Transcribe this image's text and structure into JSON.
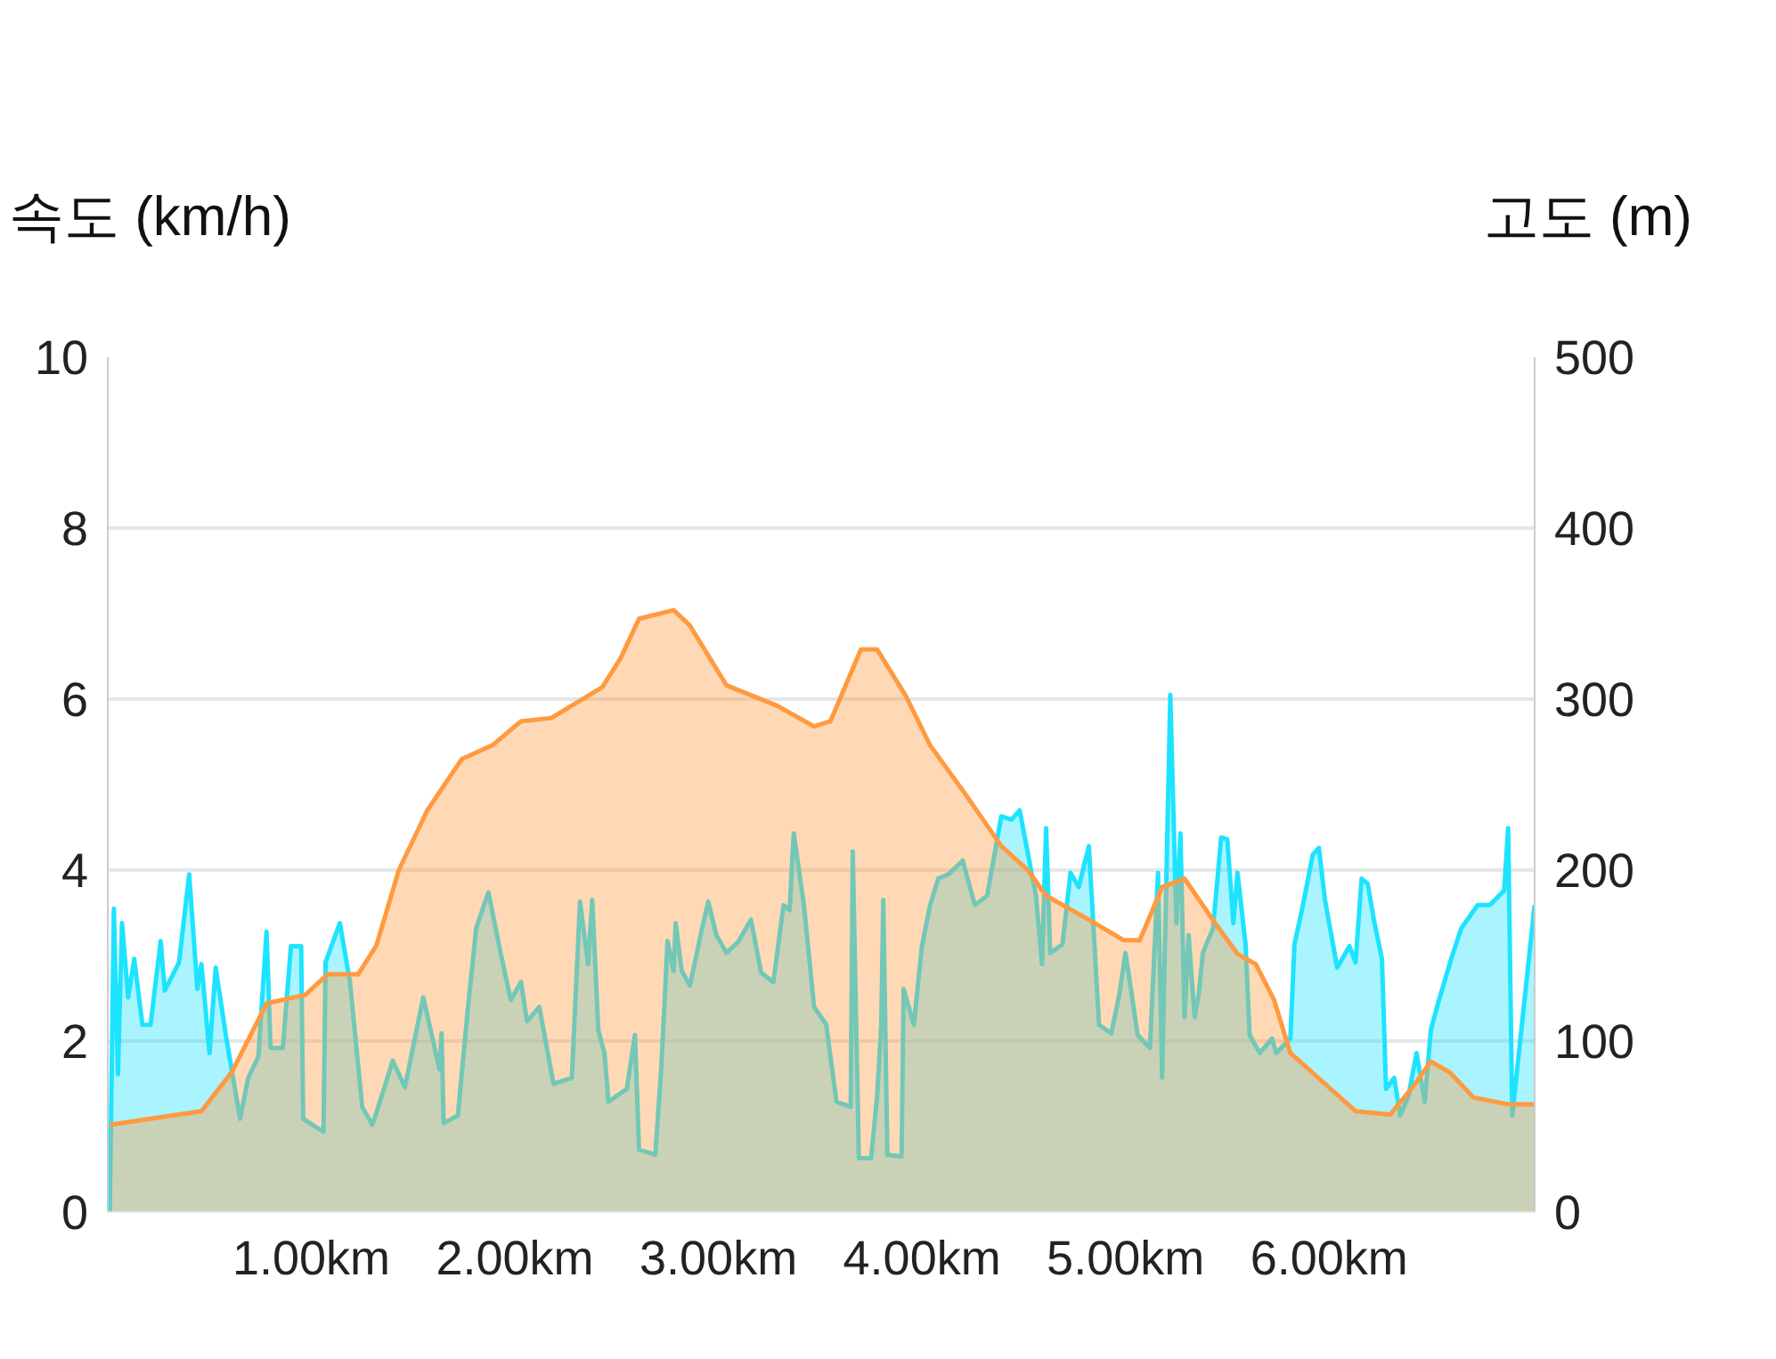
{
  "chart_data": {
    "type": "area",
    "ylabel": "속도 (km/h)",
    "y2label": "고도 (m)",
    "xlim": [
      0,
      7.01
    ],
    "xticks": [
      {
        "value": 1,
        "label": "1.00km"
      },
      {
        "value": 2,
        "label": "2.00km"
      },
      {
        "value": 3,
        "label": "3.00km"
      },
      {
        "value": 4,
        "label": "4.00km"
      },
      {
        "value": 5,
        "label": "5.00km"
      },
      {
        "value": 6,
        "label": "6.00km"
      }
    ],
    "ylim": [
      0,
      10
    ],
    "yticks": [
      0,
      2,
      4,
      6,
      8,
      10
    ],
    "y2lim": [
      0,
      500
    ],
    "y2ticks": [
      0,
      100,
      200,
      300,
      400,
      500
    ],
    "grid": "y",
    "series": [
      {
        "color": "#1ee3ff",
        "x": [
          0.01,
          0.03,
          0.05,
          0.07,
          0.1,
          0.13,
          0.17,
          0.21,
          0.26,
          0.28,
          0.35,
          0.4,
          0.44,
          0.46,
          0.5,
          0.53,
          0.58,
          0.65,
          0.69,
          0.74,
          0.78,
          0.8,
          0.86,
          0.9,
          0.95,
          0.96,
          1.06,
          1.07,
          1.14,
          1.19,
          1.25,
          1.3,
          1.36,
          1.4,
          1.46,
          1.55,
          1.63,
          1.64,
          1.65,
          1.72,
          1.77,
          1.81,
          1.87,
          1.93,
          1.98,
          2.03,
          2.06,
          2.12,
          2.19,
          2.28,
          2.32,
          2.36,
          2.38,
          2.41,
          2.44,
          2.46,
          2.55,
          2.59,
          2.61,
          2.69,
          2.72,
          2.75,
          2.78,
          2.79,
          2.82,
          2.86,
          2.92,
          2.95,
          2.99,
          3.04,
          3.1,
          3.16,
          3.21,
          3.27,
          3.32,
          3.35,
          3.37,
          3.42,
          3.47,
          3.53,
          3.58,
          3.65,
          3.66,
          3.69,
          3.75,
          3.78,
          3.8,
          3.81,
          3.83,
          3.9,
          3.91,
          3.96,
          4.0,
          4.04,
          4.08,
          4.13,
          4.2,
          4.26,
          4.32,
          4.39,
          4.44,
          4.48,
          4.56,
          4.59,
          4.61,
          4.63,
          4.69,
          4.73,
          4.77,
          4.82,
          4.87,
          4.93,
          4.97,
          5.0,
          5.06,
          5.12,
          5.16,
          5.18,
          5.22,
          5.25,
          5.27,
          5.29,
          5.31,
          5.34,
          5.36,
          5.38,
          5.43,
          5.47,
          5.5,
          5.53,
          5.55,
          5.59,
          5.61,
          5.66,
          5.72,
          5.74,
          5.81,
          5.83,
          5.87,
          5.92,
          5.95,
          5.98,
          6.04,
          6.1,
          6.13,
          6.16,
          6.19,
          6.22,
          6.26,
          6.28,
          6.32,
          6.35,
          6.39,
          6.43,
          6.47,
          6.5,
          6.54,
          6.6,
          6.65,
          6.73,
          6.79,
          6.86,
          6.88,
          6.9,
          7.01
        ],
        "values": [
          0,
          3.55,
          1.61,
          3.38,
          2.51,
          2.96,
          2.19,
          2.19,
          3.17,
          2.59,
          2.92,
          3.95,
          2.61,
          2.9,
          1.86,
          2.86,
          2.07,
          1.09,
          1.57,
          1.82,
          3.28,
          1.92,
          1.92,
          3.11,
          3.11,
          1.09,
          0.94,
          2.92,
          3.38,
          2.69,
          1.23,
          1.02,
          1.46,
          1.77,
          1.46,
          2.51,
          1.67,
          2.09,
          1.04,
          1.13,
          2.4,
          3.32,
          3.74,
          3.03,
          2.48,
          2.69,
          2.23,
          2.4,
          1.5,
          1.57,
          3.63,
          2.9,
          3.65,
          2.13,
          1.86,
          1.29,
          1.44,
          2.07,
          0.73,
          0.67,
          1.71,
          3.17,
          2.82,
          3.38,
          2.82,
          2.65,
          3.32,
          3.63,
          3.24,
          3.03,
          3.17,
          3.42,
          2.8,
          2.69,
          3.59,
          3.53,
          4.43,
          3.59,
          2.4,
          2.19,
          1.29,
          1.23,
          4.22,
          0.63,
          0.63,
          1.36,
          2.19,
          3.65,
          0.67,
          0.65,
          2.61,
          2.19,
          3.11,
          3.59,
          3.9,
          3.95,
          4.11,
          3.59,
          3.7,
          4.63,
          4.59,
          4.7,
          3.7,
          2.9,
          4.49,
          3.03,
          3.13,
          3.97,
          3.8,
          4.28,
          2.19,
          2.09,
          2.55,
          3.03,
          2.07,
          1.92,
          3.97,
          1.57,
          6.05,
          3.38,
          4.43,
          2.28,
          3.24,
          2.28,
          2.55,
          3.03,
          3.32,
          4.38,
          4.36,
          3.38,
          3.97,
          3.13,
          2.07,
          1.86,
          2.03,
          1.86,
          2.03,
          3.13,
          3.57,
          4.18,
          4.26,
          3.65,
          2.86,
          3.11,
          2.92,
          3.9,
          3.84,
          3.42,
          2.96,
          1.44,
          1.57,
          1.13,
          1.36,
          1.86,
          1.29,
          2.13,
          2.48,
          2.96,
          3.32,
          3.59,
          3.59,
          3.76,
          4.49,
          1.13,
          3.59
        ]
      },
      {
        "color": "#ff9a40",
        "axis": "y2",
        "x": [
          0.01,
          0.46,
          0.61,
          0.78,
          0.97,
          1.08,
          1.23,
          1.32,
          1.43,
          1.57,
          1.74,
          1.89,
          2.03,
          2.18,
          2.43,
          2.52,
          2.61,
          2.78,
          2.86,
          3.04,
          3.29,
          3.47,
          3.55,
          3.7,
          3.78,
          3.92,
          4.04,
          4.21,
          4.39,
          4.52,
          4.61,
          4.82,
          4.99,
          5.07,
          5.18,
          5.29,
          5.44,
          5.55,
          5.64,
          5.73,
          5.81,
          5.98,
          6.13,
          6.3,
          6.41,
          6.5,
          6.59,
          6.71,
          6.88,
          7.01
        ],
        "values": [
          51,
          59,
          82,
          122,
          127,
          139,
          139,
          156,
          200,
          235,
          265,
          273,
          287,
          289,
          307,
          324,
          347,
          352,
          343,
          308,
          296,
          284,
          287,
          329,
          329,
          302,
          273,
          245,
          214,
          200,
          185,
          171,
          159,
          159,
          190,
          195,
          169,
          151,
          145,
          124,
          93,
          75,
          59,
          57,
          73,
          88,
          82,
          67,
          63,
          63
        ]
      }
    ]
  }
}
